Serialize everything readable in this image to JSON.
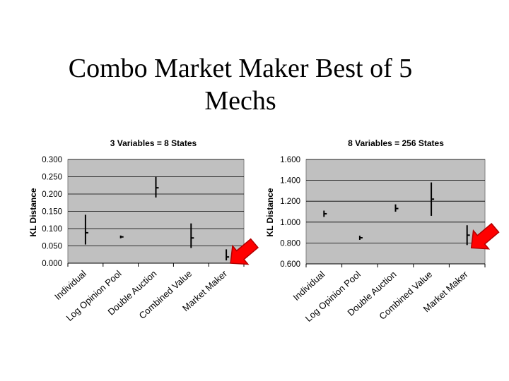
{
  "slide": {
    "title_line1": "Combo Market Maker Best of 5",
    "title_line2": "Mechs"
  },
  "colors": {
    "plot_bg": "#c0c0c0",
    "gridline": "#000000",
    "bar": "#000000",
    "arrow_fill": "#ff0000",
    "arrow_stroke": "#b00000"
  },
  "icons": [
    "red-arrow-icon",
    "red-arrow-icon"
  ],
  "chart_data": [
    {
      "type": "high-low",
      "title": "3 Variables = 8 States",
      "ylabel": "KL Distance",
      "xlabel": "",
      "ylim": [
        0,
        0.3
      ],
      "yticks": [
        "0.000",
        "0.050",
        "0.100",
        "0.150",
        "0.200",
        "0.250",
        "0.300"
      ],
      "yticks_values": [
        0,
        0.05,
        0.1,
        0.15,
        0.2,
        0.25,
        0.3
      ],
      "grid": true,
      "categories": [
        "Individual",
        "Log Opinion Pool",
        "Double Auction",
        "Combined Value",
        "Market Maker"
      ],
      "high": [
        0.14,
        0.08,
        0.25,
        0.115,
        0.04
      ],
      "low": [
        0.054,
        0.072,
        0.19,
        0.044,
        0.008
      ],
      "mean": [
        0.088,
        0.076,
        0.218,
        0.073,
        0.018
      ],
      "highlighted_category": "Market Maker"
    },
    {
      "type": "high-low",
      "title": "8 Variables = 256 States",
      "ylabel": "KL Distance",
      "xlabel": "",
      "ylim": [
        0.6,
        1.6
      ],
      "yticks": [
        "0.600",
        "0.800",
        "1.000",
        "1.200",
        "1.400",
        "1.600"
      ],
      "yticks_values": [
        0.6,
        0.8,
        1,
        1.2,
        1.4,
        1.6
      ],
      "grid": true,
      "categories": [
        "Individual",
        "Log Opinion Pool",
        "Double Auction",
        "Combined Value",
        "Market Maker"
      ],
      "high": [
        1.11,
        0.87,
        1.17,
        1.38,
        0.97
      ],
      "low": [
        1.05,
        0.83,
        1.1,
        1.06,
        0.78
      ],
      "mean": [
        1.08,
        0.85,
        1.13,
        1.22,
        0.875
      ],
      "highlighted_category": "Market Maker"
    }
  ]
}
